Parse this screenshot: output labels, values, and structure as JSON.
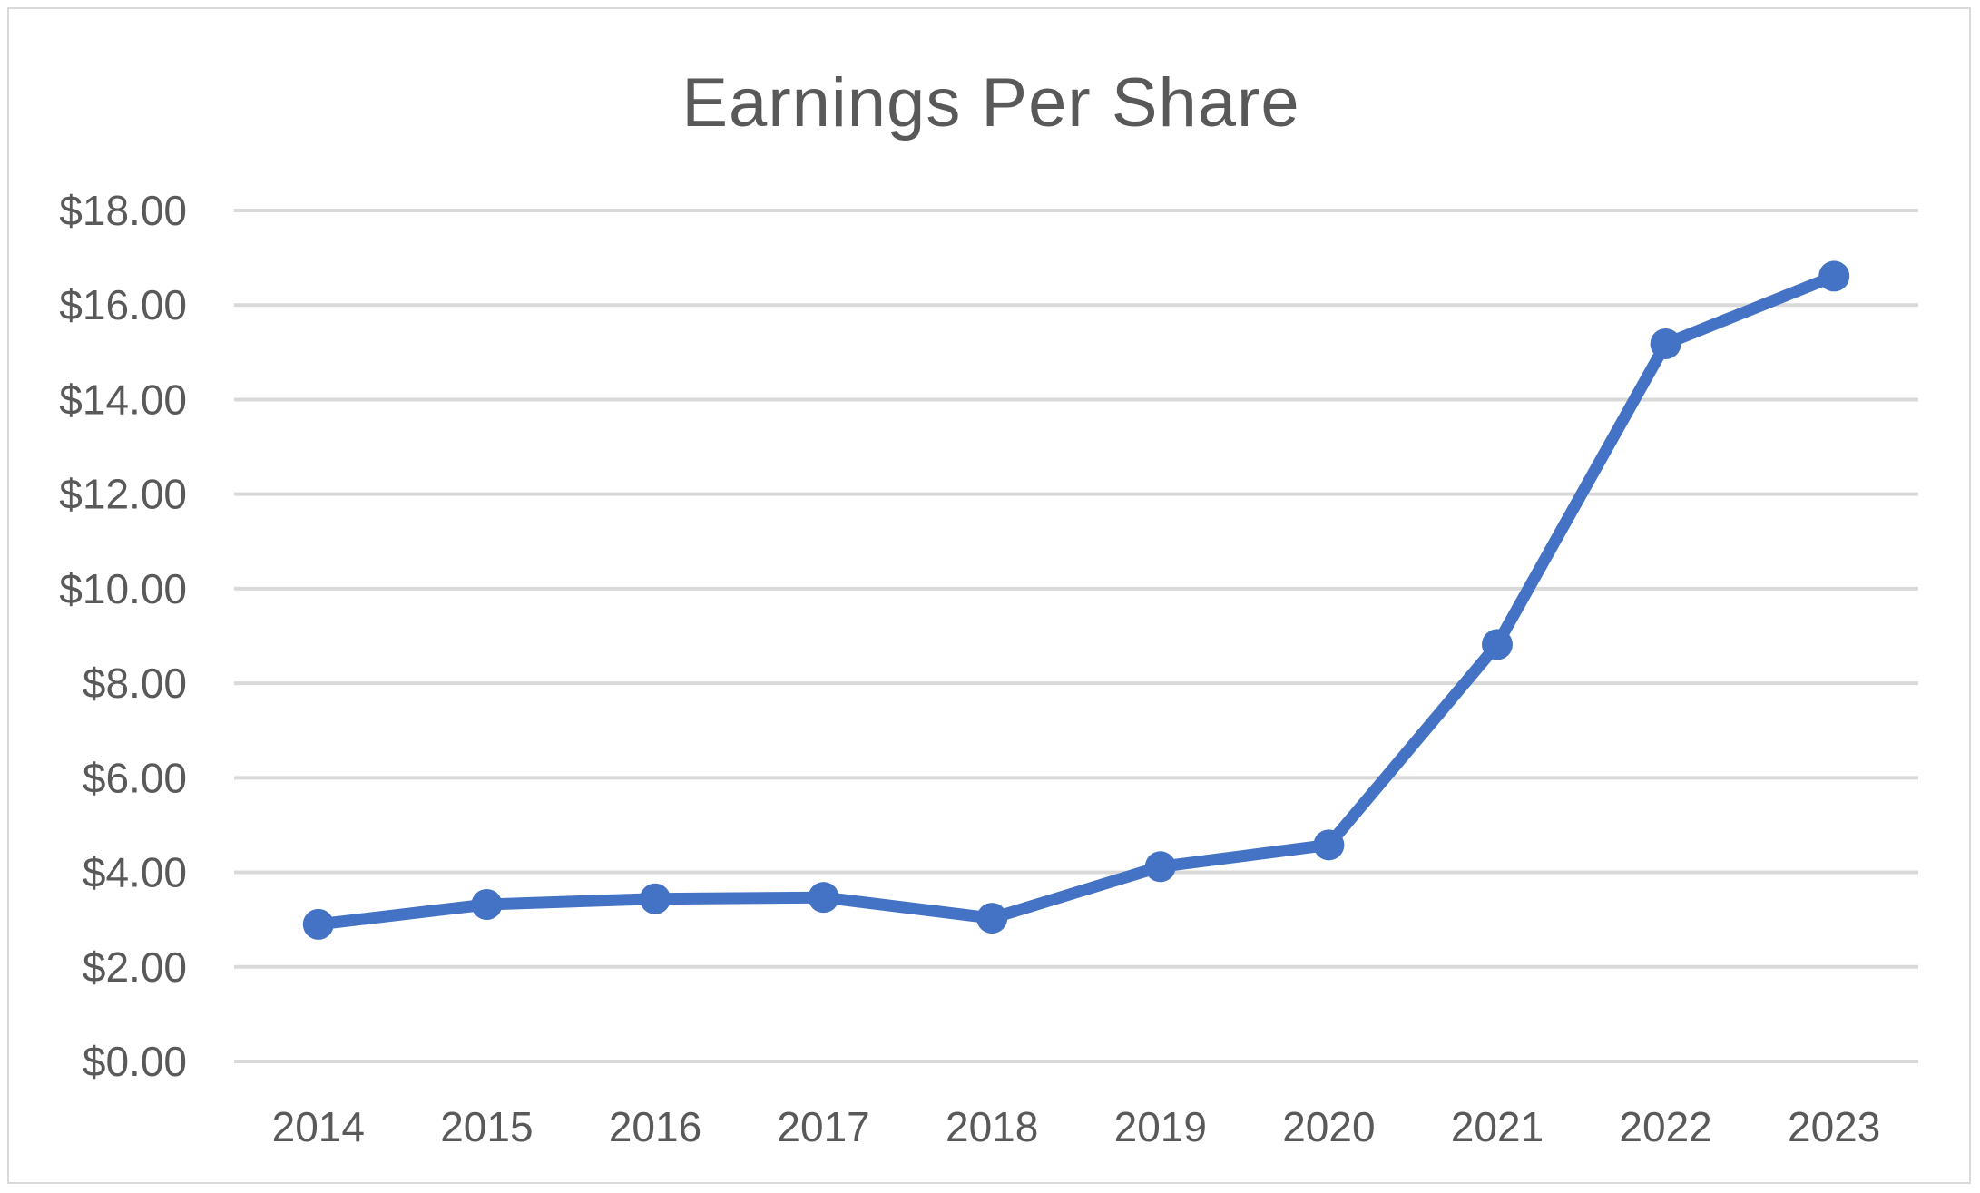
{
  "chart_data": {
    "type": "line",
    "title": "Earnings Per Share",
    "xlabel": "",
    "ylabel": "",
    "categories": [
      "2014",
      "2015",
      "2016",
      "2017",
      "2018",
      "2019",
      "2020",
      "2021",
      "2022",
      "2023"
    ],
    "series": [
      {
        "values": [
          2.9,
          3.32,
          3.44,
          3.47,
          3.03,
          4.12,
          4.58,
          8.82,
          15.18,
          16.61
        ],
        "color": "#4472c4"
      }
    ],
    "ylim": [
      0,
      18
    ],
    "ytick_values": [
      0,
      2,
      4,
      6,
      8,
      10,
      12,
      14,
      16,
      18
    ],
    "ytick_labels": [
      "$0.00",
      "$2.00",
      "$4.00",
      "$6.00",
      "$8.00",
      "$10.00",
      "$12.00",
      "$14.00",
      "$16.00",
      "$18.00"
    ],
    "grid": true,
    "legend": "none",
    "colors": {
      "line": "#4472c4",
      "grid": "#d9d9d9",
      "text": "#595959"
    }
  }
}
